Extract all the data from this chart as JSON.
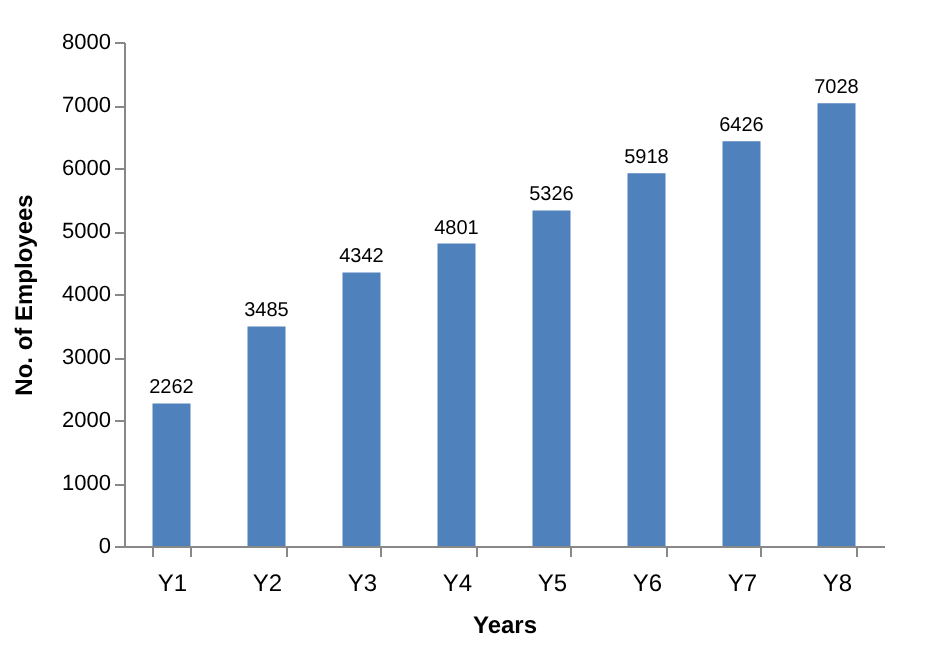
{
  "chart_data": {
    "type": "bar",
    "xlabel": "Years",
    "ylabel": "No. of Employees",
    "categories": [
      "Y1",
      "Y2",
      "Y3",
      "Y4",
      "Y5",
      "Y6",
      "Y7",
      "Y8"
    ],
    "values": [
      2262,
      3485,
      4342,
      4801,
      5326,
      5918,
      6426,
      7028
    ],
    "color": "#4f81bd",
    "ylim": [
      0,
      8000
    ],
    "yticks": [
      0,
      1000,
      2000,
      3000,
      4000,
      5000,
      6000,
      7000,
      8000
    ],
    "grid": false,
    "data_labels": true
  }
}
